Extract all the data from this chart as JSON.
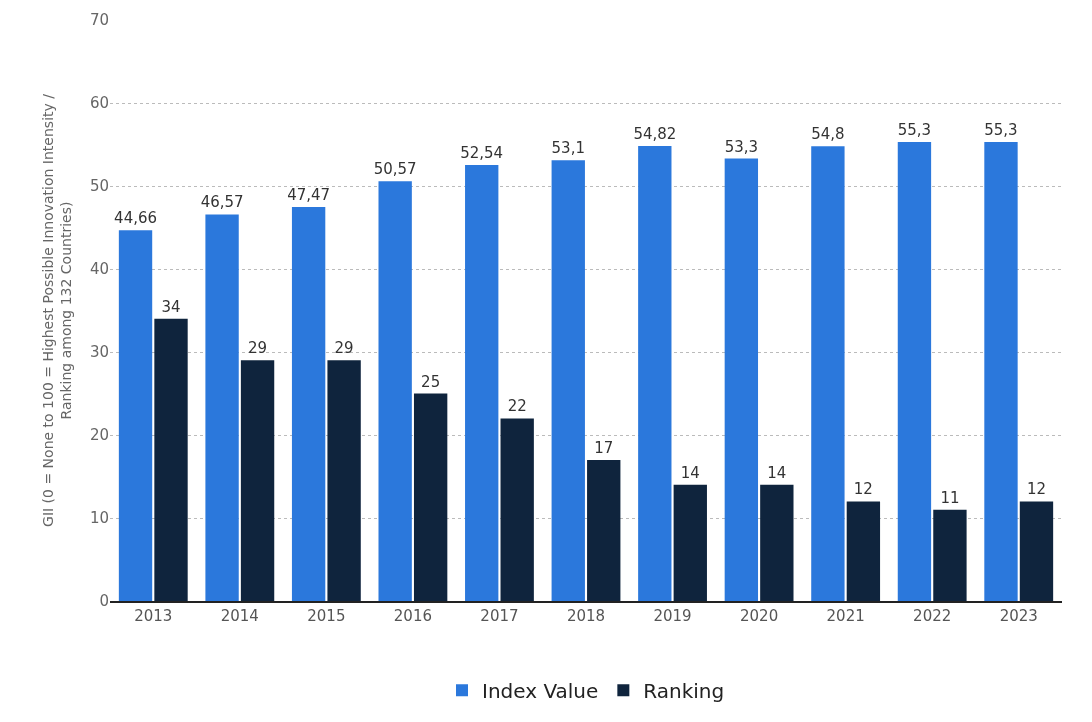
{
  "chart_data": {
    "type": "bar",
    "ylabel": "GII (0 = None to 100 = Highest Possible Innovation Intensity /\nRanking among 132 Countries)",
    "categories": [
      "2013",
      "2014",
      "2015",
      "2016",
      "2017",
      "2018",
      "2019",
      "2020",
      "2021",
      "2022",
      "2023"
    ],
    "series": [
      {
        "name": "Index Value",
        "color": "#2b78dc",
        "values": [
          44.66,
          46.57,
          47.47,
          50.57,
          52.54,
          53.1,
          54.82,
          53.3,
          54.8,
          55.3,
          55.3
        ],
        "value_labels": [
          "44,66",
          "46,57",
          "47,47",
          "50,57",
          "52,54",
          "53,1",
          "54,82",
          "53,3",
          "54,8",
          "55,3",
          "55,3"
        ]
      },
      {
        "name": "Ranking",
        "color": "#0f243d",
        "values": [
          34,
          29,
          29,
          25,
          22,
          17,
          14,
          14,
          12,
          11,
          12
        ],
        "value_labels": [
          "34",
          "29",
          "29",
          "25",
          "22",
          "17",
          "14",
          "14",
          "12",
          "11",
          "12"
        ]
      }
    ],
    "ylim": [
      0,
      70
    ],
    "yticks": [
      0,
      10,
      20,
      30,
      40,
      50,
      60,
      70
    ],
    "grid": "y",
    "legend": "bottom"
  }
}
